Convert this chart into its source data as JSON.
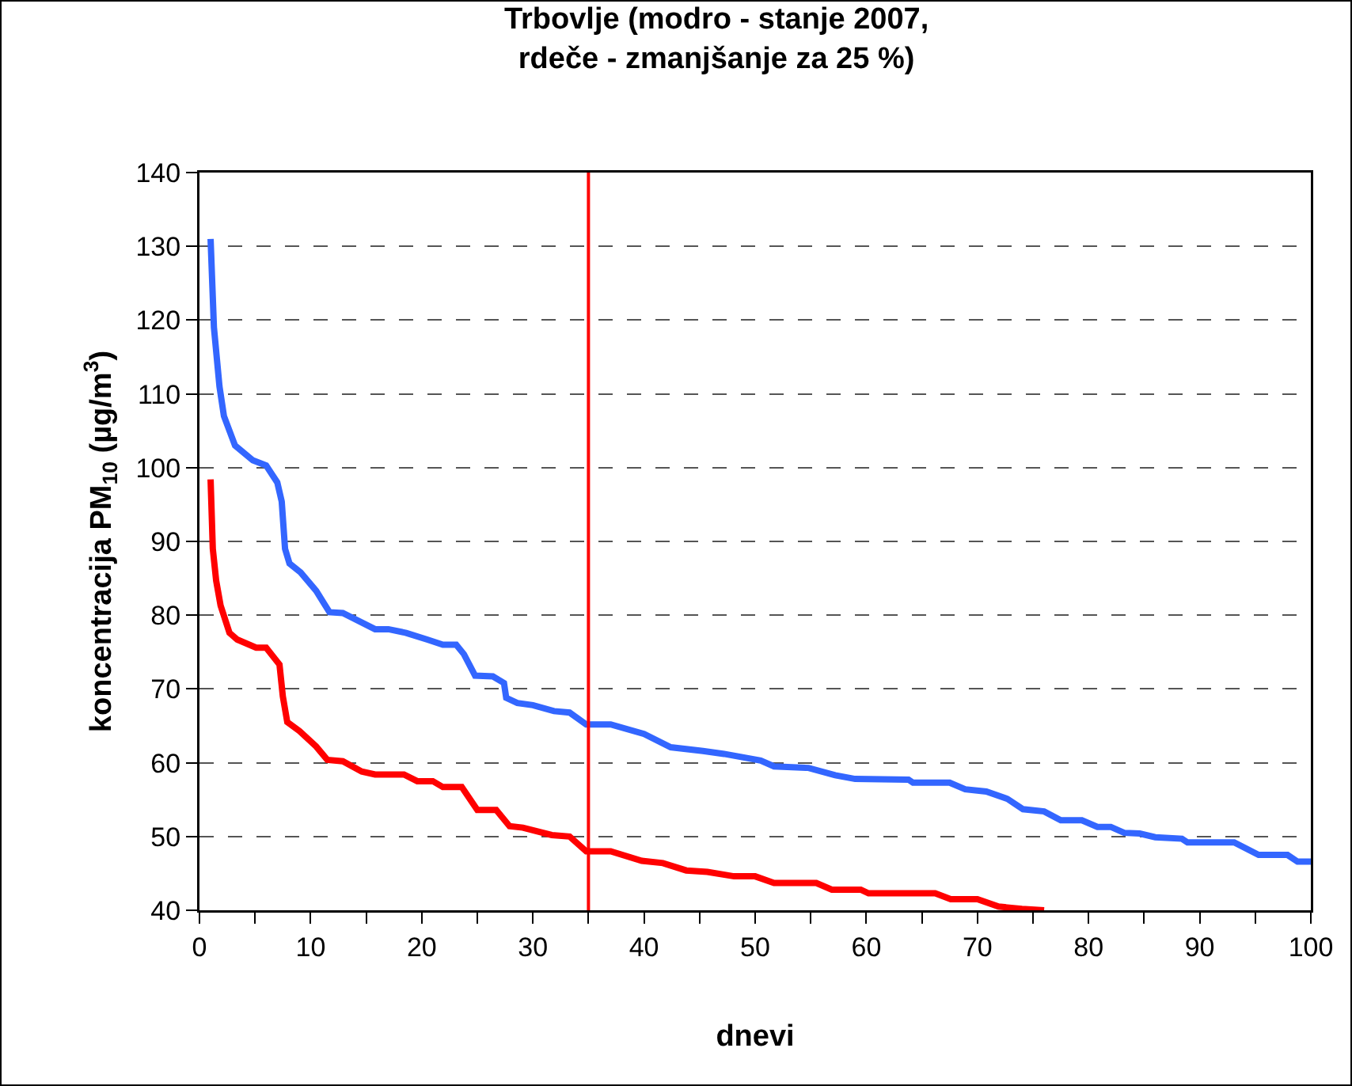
{
  "chart_data": {
    "type": "line",
    "title": "Trbovlje (modro - stanje 2007,\nrdeče - zmanjšanje za 25 %)",
    "xlabel": "dnevi",
    "ylabel": "koncentracija PM$_{10}$ (µg/m$^{3}$)",
    "xlim": [
      0,
      100
    ],
    "xticks": [
      0,
      {
        "value": 5,
        "label": null
      },
      10,
      {
        "value": 15,
        "label": null
      },
      20,
      {
        "value": 25,
        "label": null
      },
      30,
      {
        "value": 35,
        "label": null
      },
      40,
      {
        "value": 45,
        "label": null
      },
      50,
      {
        "value": 55,
        "label": null
      },
      60,
      {
        "value": 65,
        "label": null
      },
      70,
      {
        "value": 75,
        "label": null
      },
      80,
      {
        "value": 85,
        "label": null
      },
      90,
      {
        "value": 95,
        "label": null
      },
      100
    ],
    "ylim": [
      40,
      140
    ],
    "yticks": [
      40,
      50,
      60,
      70,
      80,
      90,
      100,
      110,
      120,
      130,
      140
    ],
    "grid": "y",
    "legend": false,
    "marker": "none",
    "line_style": "solid",
    "series": [
      {
        "color": "#3366ff",
        "x": [
          1,
          1.3,
          1.8,
          2.2,
          3.2,
          4.8,
          6,
          7,
          7.4,
          7.7,
          8.1,
          9.1,
          10.5,
          11.7,
          12.9,
          15.8,
          17,
          18.6,
          20.5,
          21.9,
          23.1,
          23.8,
          24.8,
          26.4,
          27.4,
          27.6,
          28.6,
          30,
          31.9,
          33.3,
          34.8,
          37,
          40,
          42.4,
          45.3,
          47.2,
          50.5,
          51.7,
          54.8,
          57.2,
          59,
          63.8,
          64.2,
          67.5,
          68.9,
          70.8,
          72.7,
          74.1,
          76,
          77.5,
          79.4,
          80.8,
          82,
          83.2,
          84.6,
          86,
          88.4,
          88.9,
          93.1,
          95.3,
          97.9,
          98.8,
          100
        ],
        "values": [
          131,
          119,
          111,
          107,
          103,
          101,
          100.3,
          98,
          95.4,
          89,
          87,
          85.8,
          83.3,
          80.4,
          80.3,
          78.1,
          78.1,
          77.6,
          76.7,
          76,
          76,
          74.7,
          71.8,
          71.7,
          70.8,
          68.8,
          68.1,
          67.8,
          67,
          66.8,
          65.2,
          65.2,
          63.9,
          62.1,
          61.6,
          61.2,
          60.3,
          59.5,
          59.3,
          58.3,
          57.8,
          57.7,
          57.3,
          57.3,
          56.4,
          56.1,
          55.1,
          53.7,
          53.4,
          52.2,
          52.2,
          51.3,
          51.3,
          50.5,
          50.4,
          49.9,
          49.7,
          49.2,
          49.2,
          47.5,
          47.5,
          46.6,
          46.6
        ]
      },
      {
        "color": "#ff0000",
        "x": [
          1,
          1.2,
          1.5,
          1.9,
          2.7,
          3.4,
          5.1,
          6,
          7.2,
          7.5,
          7.9,
          9,
          10.5,
          11.5,
          12.9,
          14.6,
          15.8,
          18.4,
          19.6,
          21,
          21.9,
          23.6,
          25,
          26.7,
          27.9,
          29.1,
          31.7,
          33.3,
          34.8,
          37,
          39.8,
          41.7,
          43.8,
          45.7,
          48.1,
          50,
          51.7,
          55.5,
          56.9,
          59.5,
          60.2,
          66.2,
          67.6,
          70,
          71.9,
          74,
          76
        ],
        "values": [
          98.4,
          89,
          84.7,
          81.3,
          77.6,
          76.7,
          75.6,
          75.6,
          73.3,
          69,
          65.5,
          64.3,
          62.2,
          60.4,
          60.2,
          58.8,
          58.4,
          58.4,
          57.5,
          57.5,
          56.7,
          56.7,
          53.6,
          53.6,
          51.4,
          51.2,
          50.2,
          50,
          48,
          48,
          46.7,
          46.4,
          45.4,
          45.2,
          44.6,
          44.6,
          43.7,
          43.7,
          42.8,
          42.8,
          42.3,
          42.3,
          41.5,
          41.5,
          40.5,
          40.2,
          40
        ]
      }
    ],
    "ref_lines": [
      {
        "axis": "x",
        "value": 35,
        "color": "#ff0000"
      }
    ]
  }
}
